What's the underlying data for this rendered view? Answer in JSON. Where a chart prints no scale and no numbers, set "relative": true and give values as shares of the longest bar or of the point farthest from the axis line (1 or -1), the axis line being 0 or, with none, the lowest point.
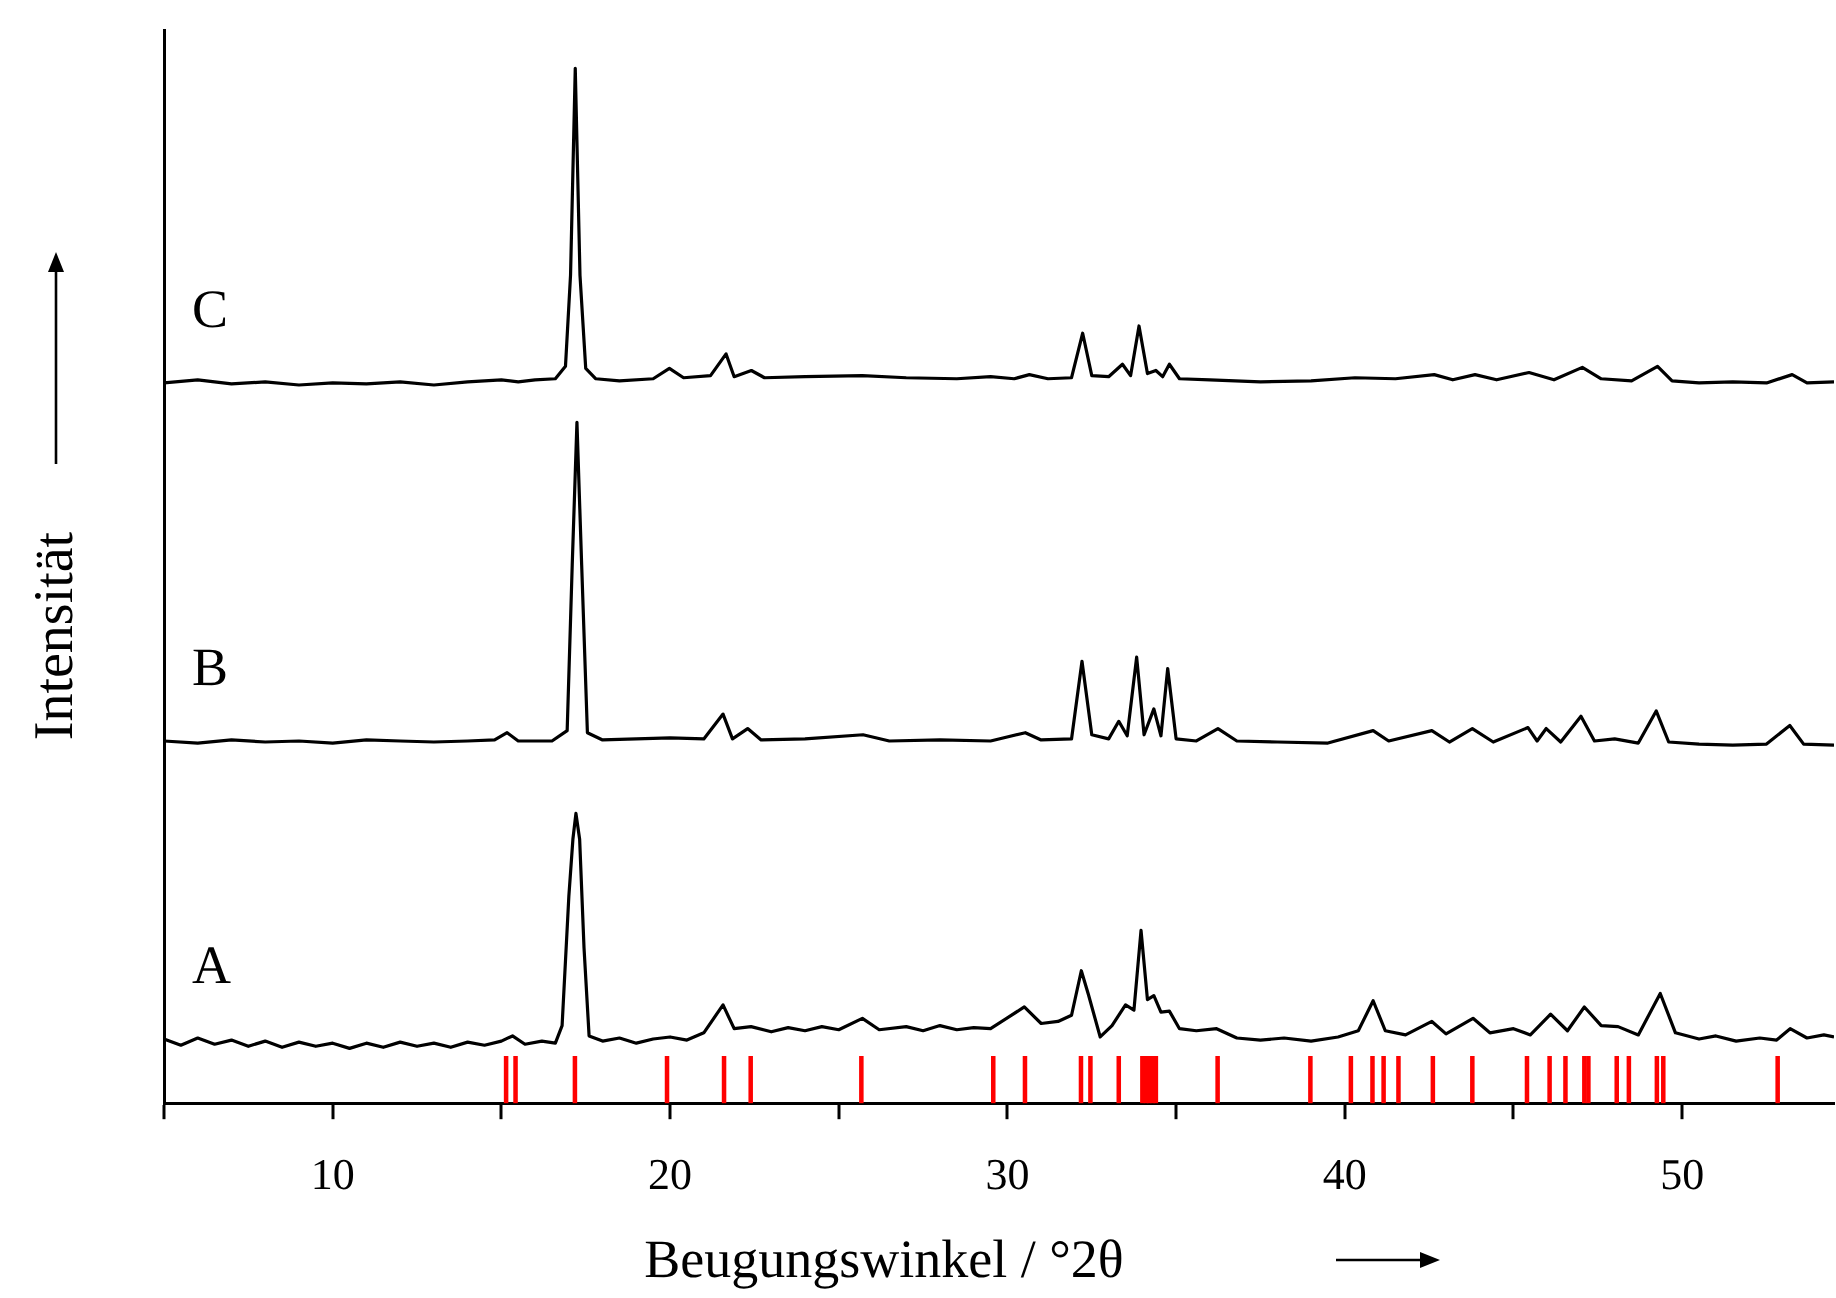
{
  "chart_data": {
    "type": "line",
    "xlabel": "Beugungswinkel / °2θ",
    "ylabel": "Intensität",
    "relative": true,
    "xlim": [
      5,
      54.5
    ],
    "xticks": [
      {
        "value": 5,
        "label": null
      },
      10,
      {
        "value": 15,
        "label": null
      },
      20,
      {
        "value": 25,
        "label": null
      },
      30,
      {
        "value": 35,
        "label": null
      },
      40,
      {
        "value": 45,
        "label": null
      },
      50
    ],
    "grid": false,
    "marker": "none",
    "line_style": "solid",
    "series": [
      {
        "name": "C",
        "color": "#000000",
        "x": [
          5,
          6,
          7,
          8,
          9,
          10,
          11,
          12,
          13,
          14,
          15,
          15.5,
          16,
          16.6,
          16.9,
          17.05,
          17.19,
          17.33,
          17.5,
          17.8,
          18.5,
          19.5,
          19.98,
          20.4,
          21.2,
          21.66,
          21.9,
          22.41,
          22.8,
          24,
          25.7,
          27,
          28.5,
          29.5,
          30.2,
          30.65,
          31.2,
          31.9,
          32.23,
          32.5,
          33,
          33.41,
          33.65,
          33.9,
          34.15,
          34.4,
          34.6,
          34.8,
          35.1,
          36,
          37.5,
          39,
          40.3,
          41.5,
          42.65,
          43.2,
          43.86,
          44.5,
          45.46,
          46.2,
          47.04,
          47.6,
          48.5,
          49.27,
          49.7,
          50.5,
          51.5,
          52.5,
          53.26,
          53.7,
          54.5
        ],
        "values": [
          0.696,
          0.699,
          0.695,
          0.697,
          0.694,
          0.696,
          0.695,
          0.697,
          0.694,
          0.697,
          0.699,
          0.697,
          0.699,
          0.7,
          0.712,
          0.8,
          1,
          0.8,
          0.71,
          0.7,
          0.698,
          0.7,
          0.71,
          0.701,
          0.703,
          0.724,
          0.702,
          0.708,
          0.701,
          0.702,
          0.703,
          0.701,
          0.7,
          0.702,
          0.7,
          0.704,
          0.7,
          0.701,
          0.744,
          0.703,
          0.702,
          0.714,
          0.703,
          0.751,
          0.705,
          0.708,
          0.702,
          0.714,
          0.7,
          0.699,
          0.697,
          0.698,
          0.701,
          0.7,
          0.704,
          0.699,
          0.704,
          0.699,
          0.706,
          0.699,
          0.711,
          0.7,
          0.698,
          0.712,
          0.698,
          0.696,
          0.697,
          0.696,
          0.704,
          0.696,
          0.697
        ]
      },
      {
        "name": "B",
        "color": "#000000",
        "x": [
          5,
          6,
          7,
          8,
          9,
          10,
          11,
          12,
          13,
          14,
          14.8,
          15.17,
          15.5,
          16.5,
          16.95,
          17.1,
          17.24,
          17.38,
          17.55,
          18,
          19,
          20,
          21,
          21.57,
          21.85,
          22.3,
          22.7,
          24,
          25.72,
          26.5,
          28,
          29.5,
          30.53,
          31,
          31.9,
          32.21,
          32.5,
          33,
          33.3,
          33.55,
          33.83,
          34.05,
          34.34,
          34.55,
          34.75,
          35,
          35.6,
          36.24,
          36.8,
          38,
          39.5,
          40.84,
          41.3,
          42.58,
          43.1,
          43.78,
          44.4,
          45.43,
          45.7,
          45.97,
          46.4,
          47,
          47.4,
          48,
          48.7,
          49.23,
          49.6,
          50.5,
          51.5,
          52.5,
          53.19,
          53.6,
          54.5
        ],
        "values": [
          0.35,
          0.348,
          0.351,
          0.349,
          0.35,
          0.348,
          0.351,
          0.35,
          0.349,
          0.35,
          0.351,
          0.358,
          0.35,
          0.35,
          0.36,
          0.52,
          0.658,
          0.52,
          0.358,
          0.351,
          0.352,
          0.353,
          0.352,
          0.376,
          0.352,
          0.362,
          0.351,
          0.352,
          0.356,
          0.35,
          0.351,
          0.35,
          0.358,
          0.351,
          0.352,
          0.427,
          0.356,
          0.352,
          0.369,
          0.355,
          0.431,
          0.356,
          0.381,
          0.355,
          0.42,
          0.352,
          0.35,
          0.362,
          0.35,
          0.349,
          0.348,
          0.36,
          0.35,
          0.36,
          0.349,
          0.362,
          0.349,
          0.363,
          0.35,
          0.362,
          0.349,
          0.374,
          0.35,
          0.352,
          0.348,
          0.379,
          0.349,
          0.347,
          0.346,
          0.347,
          0.365,
          0.347,
          0.346
        ]
      },
      {
        "name": "A",
        "color": "#000000",
        "x": [
          5,
          5.5,
          6,
          6.5,
          7,
          7.5,
          8,
          8.5,
          9,
          9.5,
          10,
          10.5,
          11,
          11.5,
          12,
          12.5,
          13,
          13.5,
          14,
          14.5,
          15,
          15.33,
          15.7,
          16.2,
          16.6,
          16.8,
          17,
          17.12,
          17.21,
          17.32,
          17.45,
          17.6,
          18,
          18.5,
          19,
          19.5,
          20,
          20.5,
          21,
          21.57,
          21.9,
          22.4,
          23,
          23.5,
          24,
          24.5,
          25,
          25.7,
          26.2,
          27,
          27.5,
          28,
          28.5,
          29,
          29.5,
          30.5,
          31,
          31.5,
          31.9,
          32.19,
          32.4,
          32.75,
          33.1,
          33.5,
          33.75,
          33.96,
          34.15,
          34.34,
          34.55,
          34.8,
          35.1,
          35.6,
          36.2,
          36.8,
          37.5,
          38.2,
          39,
          39.8,
          40.4,
          40.84,
          41.2,
          41.8,
          42.58,
          43,
          43.8,
          44.3,
          45,
          45.5,
          46.1,
          46.6,
          47.1,
          47.6,
          48.1,
          48.7,
          49.35,
          49.8,
          50.5,
          51,
          51.6,
          52.3,
          52.8,
          53.2,
          53.7,
          54.2,
          54.5
        ],
        "values": [
          0.062,
          0.056,
          0.063,
          0.057,
          0.061,
          0.055,
          0.06,
          0.054,
          0.059,
          0.055,
          0.058,
          0.053,
          0.058,
          0.054,
          0.059,
          0.055,
          0.058,
          0.054,
          0.059,
          0.056,
          0.06,
          0.065,
          0.057,
          0.06,
          0.058,
          0.075,
          0.2,
          0.255,
          0.28,
          0.255,
          0.15,
          0.065,
          0.06,
          0.063,
          0.058,
          0.062,
          0.064,
          0.061,
          0.068,
          0.095,
          0.072,
          0.074,
          0.069,
          0.073,
          0.07,
          0.074,
          0.071,
          0.082,
          0.071,
          0.074,
          0.07,
          0.075,
          0.071,
          0.073,
          0.072,
          0.093,
          0.077,
          0.079,
          0.085,
          0.128,
          0.105,
          0.064,
          0.075,
          0.095,
          0.09,
          0.167,
          0.1,
          0.104,
          0.088,
          0.089,
          0.072,
          0.07,
          0.072,
          0.063,
          0.061,
          0.063,
          0.06,
          0.064,
          0.07,
          0.099,
          0.07,
          0.066,
          0.079,
          0.067,
          0.082,
          0.068,
          0.072,
          0.066,
          0.086,
          0.07,
          0.093,
          0.075,
          0.074,
          0.066,
          0.106,
          0.068,
          0.062,
          0.065,
          0.06,
          0.063,
          0.061,
          0.072,
          0.063,
          0.066,
          0.064
        ]
      },
      {
        "type": "bar",
        "color": "#ff0000",
        "x": [
          15.14,
          15.42,
          17.18,
          19.91,
          21.6,
          22.39,
          25.67,
          29.58,
          30.52,
          32.18,
          32.46,
          33.3,
          34,
          34.11,
          34.2,
          34.3,
          34.4,
          36.23,
          38.98,
          40.18,
          40.82,
          41.15,
          41.59,
          42.61,
          43.78,
          45.4,
          46.07,
          46.54,
          47.1,
          47.22,
          48.06,
          48.42,
          49.25,
          49.44,
          52.83
        ],
        "values": [
          0.045,
          0.045,
          0.045,
          0.045,
          0.045,
          0.045,
          0.045,
          0.045,
          0.045,
          0.045,
          0.045,
          0.045,
          0.045,
          0.045,
          0.045,
          0.045,
          0.045,
          0.045,
          0.045,
          0.045,
          0.045,
          0.045,
          0.045,
          0.045,
          0.045,
          0.045,
          0.045,
          0.045,
          0.045,
          0.045,
          0.045,
          0.045,
          0.045,
          0.045,
          0.045
        ]
      }
    ]
  }
}
